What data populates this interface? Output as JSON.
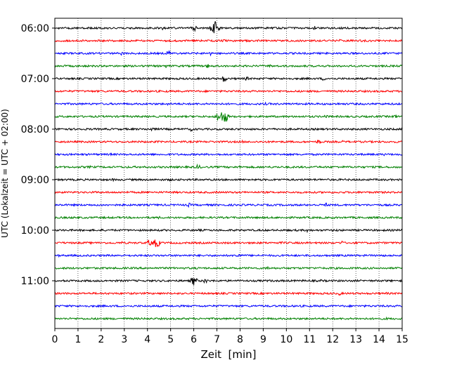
{
  "chart_data": {
    "type": "line",
    "title": "",
    "xlabel": "Zeit  [min]",
    "ylabel": "UTC (Lokalzeit = UTC + 02:00)",
    "xlim": [
      0,
      15
    ],
    "x_ticks": [
      "0",
      "1",
      "2",
      "3",
      "4",
      "5",
      "6",
      "7",
      "8",
      "9",
      "10",
      "11",
      "12",
      "13",
      "14",
      "15"
    ],
    "y_ticks": [
      "06:00",
      "07:00",
      "08:00",
      "09:00",
      "10:00",
      "11:00"
    ],
    "grid": {
      "x": true,
      "y": false,
      "style": "dotted"
    },
    "legend": "none",
    "trace_colors": [
      "#000000",
      "#ff0000",
      "#0000ff",
      "#008000"
    ],
    "series": [
      {
        "start": "06:00",
        "events": [
          [
            4.7,
            3
          ],
          [
            6.0,
            5
          ],
          [
            6.9,
            10
          ],
          [
            11.2,
            3
          ],
          [
            12.7,
            3
          ]
        ]
      },
      {
        "start": "06:15",
        "events": [
          [
            1.0,
            2
          ],
          [
            7.3,
            2
          ],
          [
            12.3,
            2
          ]
        ]
      },
      {
        "start": "06:30",
        "events": [
          [
            2.9,
            3
          ],
          [
            4.9,
            4
          ],
          [
            6.7,
            3
          ]
        ]
      },
      {
        "start": "06:45",
        "events": [
          [
            4.8,
            3
          ],
          [
            6.6,
            3
          ],
          [
            9.3,
            2
          ]
        ]
      },
      {
        "start": "07:00",
        "events": [
          [
            7.3,
            5
          ],
          [
            8.3,
            3
          ],
          [
            11.6,
            3
          ]
        ]
      },
      {
        "start": "07:15",
        "events": [
          [
            2.0,
            2
          ],
          [
            4.9,
            2
          ]
        ]
      },
      {
        "start": "07:30",
        "events": [
          [
            4.9,
            2
          ],
          [
            9.1,
            2
          ],
          [
            12.2,
            2
          ]
        ]
      },
      {
        "start": "07:45",
        "events": [
          [
            7.1,
            8
          ],
          [
            7.3,
            10
          ],
          [
            11.7,
            3
          ],
          [
            14.7,
            3
          ]
        ]
      },
      {
        "start": "08:00",
        "events": [
          [
            0.3,
            3
          ],
          [
            1.0,
            3
          ],
          [
            4.2,
            3
          ],
          [
            5.9,
            3
          ]
        ]
      },
      {
        "start": "08:15",
        "events": [
          [
            8.1,
            2
          ],
          [
            11.4,
            4
          ],
          [
            12.4,
            2
          ]
        ]
      },
      {
        "start": "08:30",
        "events": [
          [
            2.4,
            2
          ],
          [
            14.2,
            2
          ]
        ]
      },
      {
        "start": "08:45",
        "events": [
          [
            1.5,
            2
          ],
          [
            6.2,
            4
          ],
          [
            8.0,
            2
          ]
        ]
      },
      {
        "start": "09:00",
        "events": [
          [
            2.5,
            2
          ],
          [
            5.0,
            2
          ],
          [
            9.6,
            2
          ]
        ]
      },
      {
        "start": "09:15",
        "events": [
          [
            1.8,
            2
          ],
          [
            7.0,
            2
          ]
        ]
      },
      {
        "start": "09:30",
        "events": [
          [
            3.0,
            2
          ],
          [
            5.8,
            3
          ],
          [
            11.7,
            3
          ]
        ]
      },
      {
        "start": "09:45",
        "events": [
          [
            4.5,
            2
          ],
          [
            12.0,
            2
          ]
        ]
      },
      {
        "start": "10:00",
        "events": [
          [
            2.0,
            2
          ],
          [
            6.2,
            2
          ],
          [
            10.9,
            3
          ],
          [
            12.2,
            2
          ]
        ]
      },
      {
        "start": "10:15",
        "events": [
          [
            2.9,
            2
          ],
          [
            4.1,
            5
          ],
          [
            4.4,
            7
          ],
          [
            9.8,
            2
          ],
          [
            12.4,
            3
          ]
        ]
      },
      {
        "start": "10:30",
        "events": [
          [
            0.2,
            2
          ],
          [
            2.7,
            2
          ],
          [
            7.9,
            4
          ]
        ]
      },
      {
        "start": "10:45",
        "events": [
          [
            4.0,
            2
          ],
          [
            9.2,
            3
          ]
        ]
      },
      {
        "start": "11:00",
        "events": [
          [
            6.0,
            7
          ],
          [
            6.5,
            4
          ],
          [
            9.3,
            2
          ],
          [
            11.5,
            2
          ]
        ]
      },
      {
        "start": "11:15",
        "events": [
          [
            12.3,
            3
          ],
          [
            14.3,
            2
          ]
        ]
      },
      {
        "start": "11:30",
        "events": [
          [
            10.5,
            2
          ]
        ]
      },
      {
        "start": "11:45",
        "events": [
          [
            14.3,
            2
          ]
        ]
      }
    ]
  }
}
